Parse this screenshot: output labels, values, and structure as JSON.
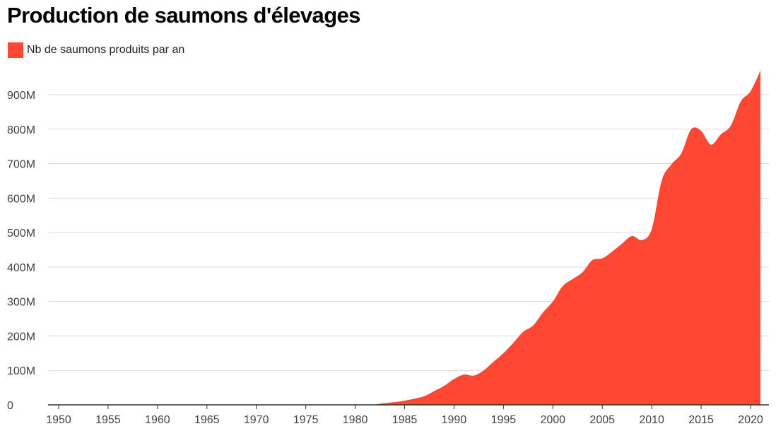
{
  "chart_data": {
    "type": "area",
    "title": "Production de saumons d'élevages",
    "xlabel": "",
    "ylabel": "",
    "legend": {
      "position": "top-left"
    },
    "grid": true,
    "xlim": [
      1950,
      2021
    ],
    "ylim": [
      0,
      900000000
    ],
    "x_ticks": [
      1950,
      1955,
      1960,
      1965,
      1970,
      1975,
      1980,
      1985,
      1990,
      1995,
      2000,
      2005,
      2010,
      2015,
      2020
    ],
    "y_ticks": [
      {
        "value": 0,
        "label": "0"
      },
      {
        "value": 100000000,
        "label": "100M"
      },
      {
        "value": 200000000,
        "label": "200M"
      },
      {
        "value": 300000000,
        "label": "300M"
      },
      {
        "value": 400000000,
        "label": "400M"
      },
      {
        "value": 500000000,
        "label": "500M"
      },
      {
        "value": 600000000,
        "label": "600M"
      },
      {
        "value": 700000000,
        "label": "700M"
      },
      {
        "value": 800000000,
        "label": "800M"
      },
      {
        "value": 900000000,
        "label": "900M"
      }
    ],
    "series": [
      {
        "name": "Nb de saumons produits par an",
        "color": "#ff4733",
        "x": [
          1950,
          1955,
          1960,
          1965,
          1970,
          1975,
          1980,
          1981,
          1982,
          1983,
          1984,
          1985,
          1986,
          1987,
          1988,
          1989,
          1990,
          1991,
          1992,
          1993,
          1994,
          1995,
          1996,
          1997,
          1998,
          1999,
          2000,
          2001,
          2002,
          2003,
          2004,
          2005,
          2006,
          2007,
          2008,
          2009,
          2010,
          2011,
          2012,
          2013,
          2014,
          2015,
          2016,
          2017,
          2018,
          2019,
          2020,
          2021
        ],
        "y": [
          0,
          0,
          0,
          0,
          0,
          0,
          0,
          0,
          1000000,
          5000000,
          8000000,
          12000000,
          18000000,
          25000000,
          40000000,
          55000000,
          75000000,
          88000000,
          85000000,
          100000000,
          125000000,
          150000000,
          180000000,
          212000000,
          230000000,
          268000000,
          300000000,
          345000000,
          365000000,
          385000000,
          420000000,
          425000000,
          445000000,
          468000000,
          490000000,
          478000000,
          510000000,
          650000000,
          698000000,
          730000000,
          800000000,
          795000000,
          755000000,
          785000000,
          810000000,
          880000000,
          910000000,
          970000000
        ]
      }
    ]
  }
}
